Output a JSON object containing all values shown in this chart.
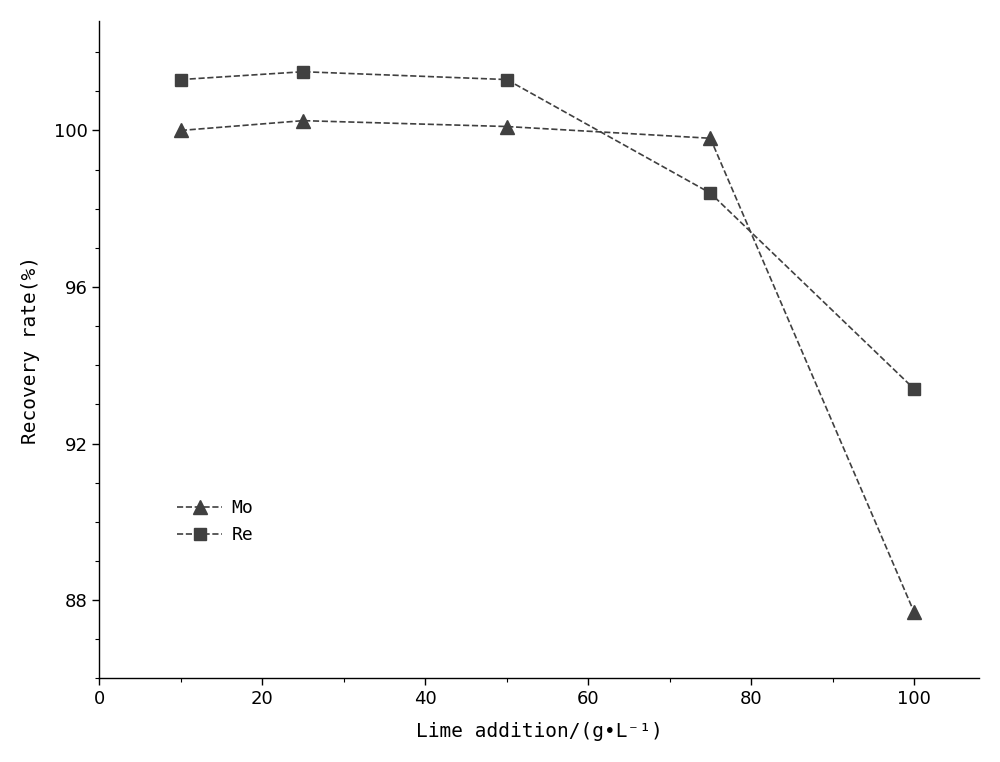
{
  "Mo_x": [
    10,
    25,
    50,
    75,
    100
  ],
  "Mo_y": [
    100.0,
    100.25,
    100.1,
    99.8,
    87.7
  ],
  "Re_x": [
    10,
    25,
    50,
    75,
    100
  ],
  "Re_y": [
    101.3,
    101.5,
    101.3,
    98.4,
    93.4
  ],
  "xlabel": "Lime addition/(g•L⁻¹)",
  "ylabel": "Recovery rate(%)",
  "xlim": [
    0,
    108
  ],
  "ylim": [
    86.0,
    102.8
  ],
  "xticks": [
    0,
    20,
    40,
    60,
    80,
    100
  ],
  "yticks": [
    88,
    92,
    96,
    100
  ],
  "Mo_label": "Mo",
  "Re_label": "Re",
  "line_color": "#404040",
  "bg_color": "#ffffff",
  "axis_fontsize": 14,
  "tick_fontsize": 13,
  "legend_fontsize": 13
}
